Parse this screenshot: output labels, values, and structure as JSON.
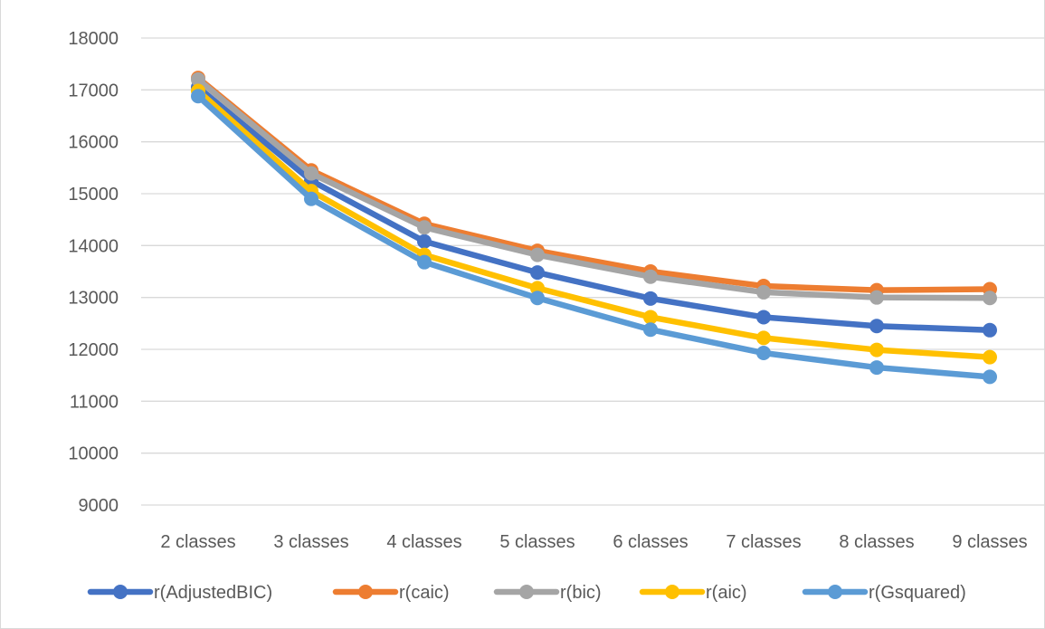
{
  "chart_data": {
    "type": "line",
    "categories": [
      "2 classes",
      "3 classes",
      "4 classes",
      "5 classes",
      "6 classes",
      "7 classes",
      "8 classes",
      "9 classes"
    ],
    "ylim": [
      9000,
      18000
    ],
    "yticks": [
      9000,
      10000,
      11000,
      12000,
      13000,
      14000,
      15000,
      16000,
      17000,
      18000
    ],
    "grid": true,
    "legend_position": "bottom",
    "series": [
      {
        "name": "r(AdjustedBIC)",
        "color": "#4472C4",
        "values": [
          17050,
          15250,
          14080,
          13480,
          12980,
          12620,
          12450,
          12370
        ]
      },
      {
        "name": "r(caic)",
        "color": "#ED7D31",
        "values": [
          17230,
          15450,
          14420,
          13900,
          13500,
          13220,
          13140,
          13160
        ]
      },
      {
        "name": "r(bic)",
        "color": "#A5A5A5",
        "values": [
          17200,
          15390,
          14350,
          13820,
          13400,
          13100,
          13000,
          12990
        ]
      },
      {
        "name": "r(aic)",
        "color": "#FFC000",
        "values": [
          16980,
          15050,
          13820,
          13180,
          12620,
          12220,
          11990,
          11850
        ]
      },
      {
        "name": "r(Gsquared)",
        "color": "#5B9BD5",
        "values": [
          16880,
          14900,
          13680,
          12990,
          12380,
          11930,
          11650,
          11470
        ]
      }
    ]
  }
}
